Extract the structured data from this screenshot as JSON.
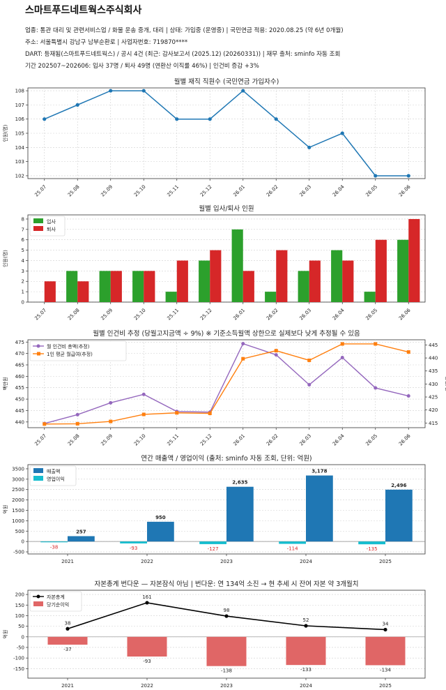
{
  "header": {
    "company": "스마트푸드네트웍스주식회사",
    "lines": [
      "업종: 통관 대리 및 관련서비스업 / 화물 운송 중개, 대리  |  상태: 가입중 (운영중)  |  국민연금 적용: 2020.08.25 (약 6년 0개월)",
      "주소: 서울특별시 강남구 남부순환로  |  사업자번호: 719870****",
      "DART: 등재됨(스마트푸드네트웍스) / 공시 4건 (최근: 감사보고서 (2025.12) (20260331))  |  재무 출처: sminfo 자동 조회",
      "기간 202507~202606: 입사 37명 / 퇴사 49명 (연환산 이직률 46%)  |  인건비 증감 +3%"
    ]
  },
  "chart_data": [
    {
      "type": "line",
      "title": "월별 재직 직원수 (국민연금 가입자수)",
      "ylabel": "인원(명)",
      "categories": [
        "25.07",
        "25.08",
        "25.09",
        "25.10",
        "25.11",
        "25.12",
        "26.01",
        "26.02",
        "26.03",
        "26.04",
        "26.05",
        "26.06"
      ],
      "series": [
        {
          "values": [
            106,
            107,
            108,
            108,
            106,
            106,
            108,
            106,
            104,
            105,
            102,
            102
          ],
          "color": "#1f77b4"
        }
      ],
      "ylim": [
        101.8,
        108.2
      ],
      "yticks": [
        102,
        103,
        104,
        105,
        106,
        107,
        108
      ],
      "grid": true
    },
    {
      "type": "bar",
      "title": "월별 입사/퇴사 인원",
      "ylabel": "인원(명)",
      "categories": [
        "25.07",
        "25.08",
        "25.09",
        "25.10",
        "25.11",
        "25.12",
        "26.01",
        "26.02",
        "26.03",
        "26.04",
        "26.05",
        "26.06"
      ],
      "series": [
        {
          "name": "입사",
          "values": [
            0,
            3,
            3,
            3,
            1,
            4,
            7,
            1,
            3,
            5,
            1,
            6
          ],
          "color": "#2ca02c"
        },
        {
          "name": "퇴사",
          "values": [
            2,
            2,
            3,
            3,
            4,
            5,
            3,
            5,
            4,
            4,
            6,
            8
          ],
          "color": "#d62728"
        }
      ],
      "ylim": [
        0,
        8.4
      ],
      "yticks": [
        0,
        1,
        2,
        3,
        4,
        5,
        6,
        7,
        8
      ],
      "legend": "top-left",
      "grid": true
    },
    {
      "type": "line",
      "title": "월별 인건비 추정 (당월고지금액 ÷ 9%) ※ 기준소득월액 상한으로 실제보다 낮게 추정될 수 있음",
      "ylabel": "백만원",
      "ylabel_right": "만원/인",
      "categories": [
        "25.07",
        "25.08",
        "25.09",
        "25.10",
        "25.11",
        "25.12",
        "26.01",
        "26.02",
        "26.03",
        "26.04",
        "26.05",
        "26.06"
      ],
      "series": [
        {
          "name": "월 인건비 총액(추정)",
          "values": [
            439.3,
            443.2,
            448.4,
            452.1,
            444.6,
            444.3,
            474.3,
            469.4,
            456.3,
            468.2,
            454.9,
            451.4
          ],
          "color": "#9467bd",
          "axis": "left"
        },
        {
          "name": "1인 평균 월급여(추정)",
          "values": [
            414.6,
            414.7,
            415.6,
            418.3,
            418.9,
            418.7,
            439.7,
            442.8,
            439.1,
            445.4,
            445.4,
            442.3
          ],
          "color": "#ff7f0e",
          "axis": "right"
        }
      ],
      "ylim": [
        437.5,
        476
      ],
      "yticks": [
        440,
        445,
        450,
        455,
        460,
        465,
        470,
        475
      ],
      "ylim_right": [
        413.2,
        447
      ],
      "yticks_right": [
        415,
        420,
        425,
        430,
        435,
        440,
        445
      ],
      "legend": "top-left",
      "grid": true
    },
    {
      "type": "bar",
      "title": "연간 매출액 / 영업이익 (출처: sminfo 자동 조회, 단위: 억원)",
      "ylabel": "억원",
      "categories": [
        "2021",
        "2022",
        "2023",
        "2024",
        "2025"
      ],
      "series": [
        {
          "name": "매출액",
          "values": [
            257,
            950,
            2635,
            3178,
            2496
          ],
          "color": "#1f77b4"
        },
        {
          "name": "영업이익",
          "values": [
            -38,
            -93,
            -127,
            -114,
            -135
          ],
          "color": "#17becf"
        }
      ],
      "value_labels": {
        "매출액": [
          "257",
          "950",
          "2,635",
          "3,178",
          "2,496"
        ],
        "영업이익": [
          "-38",
          "-93",
          "-127",
          "-114",
          "-135"
        ]
      },
      "ylim": [
        -600,
        3700
      ],
      "yticks": [
        -500,
        0,
        500,
        1000,
        1500,
        2000,
        2500,
        3000,
        3500
      ],
      "legend": "top-left",
      "grid": true
    },
    {
      "type": "bar",
      "title": "자본총계 번다운 — 자본잠식 아님  |  번다운: 연 134억 소진 → 현 추세 시 잔여 자본 약 3개월치",
      "ylabel": "억원",
      "categories": [
        "2021",
        "2022",
        "2023",
        "2024",
        "2025"
      ],
      "series": [
        {
          "name": "자본총계",
          "type": "line",
          "values": [
            38,
            161,
            98,
            52,
            34
          ],
          "color": "#000000"
        },
        {
          "name": "당기순이익",
          "type": "bar",
          "values": [
            -37,
            -93,
            -138,
            -133,
            -134
          ],
          "color": "#e06666"
        }
      ],
      "ylim": [
        -195,
        220
      ],
      "yticks": [
        -150,
        -100,
        -50,
        0,
        50,
        100,
        150,
        200
      ],
      "legend": "top-left",
      "grid": true
    }
  ]
}
